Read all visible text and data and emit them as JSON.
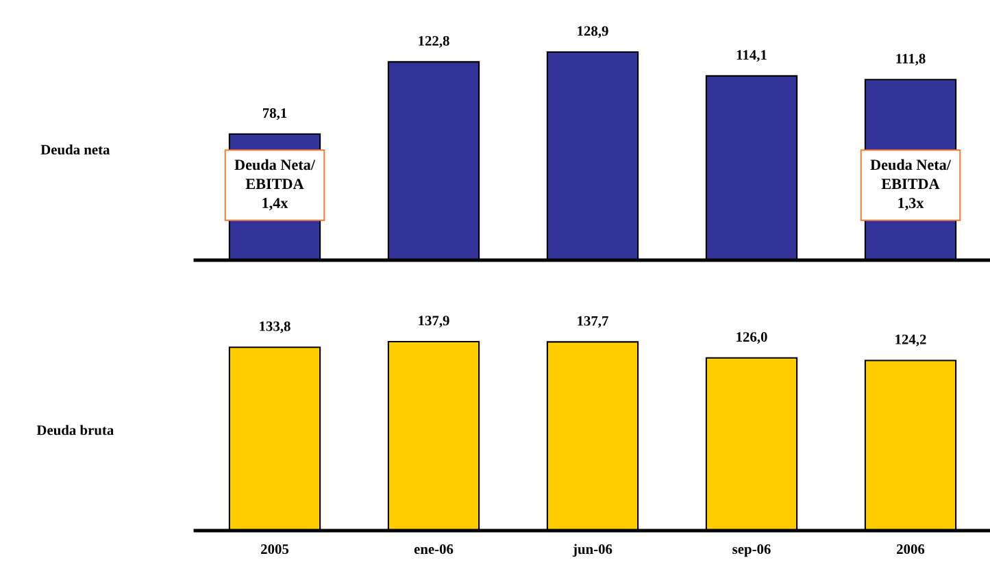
{
  "chart_data": [
    {
      "type": "bar",
      "ylabel": "Deuda neta",
      "categories": [
        null,
        null,
        null,
        null,
        null
      ],
      "values": [
        78.1,
        122.8,
        128.9,
        114.1,
        111.8
      ],
      "value_labels": [
        "78,1",
        "122,8",
        "128,9",
        "114,1",
        "111,8"
      ],
      "color": "#333399",
      "tick_labels": false,
      "annotations": [
        "Deuda Neta/\nEBITDA\n1,4x",
        "Deuda Neta/\nEBITDA\n1,3x"
      ]
    },
    {
      "type": "bar",
      "ylabel": "Deuda bruta",
      "categories": [
        "2005",
        "ene-06",
        "jun-06",
        "sep-06",
        "2006"
      ],
      "values": [
        133.8,
        137.9,
        137.7,
        126.0,
        124.2
      ],
      "value_labels": [
        "133,8",
        "137,9",
        "137,7",
        "126,0",
        "124,2"
      ],
      "color": "#ffcc00",
      "tick_labels": "x"
    }
  ]
}
